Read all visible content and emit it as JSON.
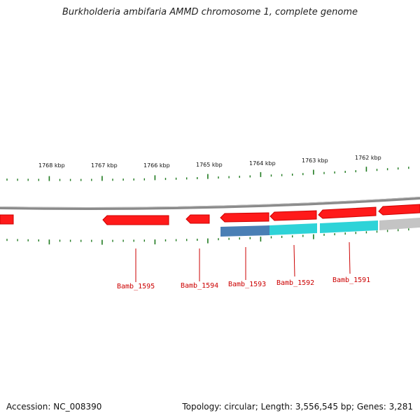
{
  "title": "Burkholderia ambifaria AMMD chromosome 1, complete genome",
  "footer": {
    "accession": "Accession: NC_008390",
    "summary": "Topology: circular; Length: 3,556,545 bp; Genes: 3,281"
  },
  "colors": {
    "gene_fill": "#ff1a1a",
    "gene_dark": "#cc0000",
    "ticks": "#1f7a1f",
    "backbone": "#8a8a8a",
    "feature_blue": "#4a7fb5",
    "feature_cyan": "#2ed3d8",
    "feature_gray": "#c4c4c4",
    "label_color": "#cc0000"
  },
  "scale_labels": [
    "1768 kbp",
    "1767 kbp",
    "1766 kbp",
    "1765 kbp",
    "1764 kbp",
    "1763 kbp",
    "1762 kbp"
  ],
  "gene_labels": [
    "Bamb_1595",
    "Bamb_1594",
    "Bamb_1593",
    "Bamb_1592",
    "Bamb_1591"
  ]
}
